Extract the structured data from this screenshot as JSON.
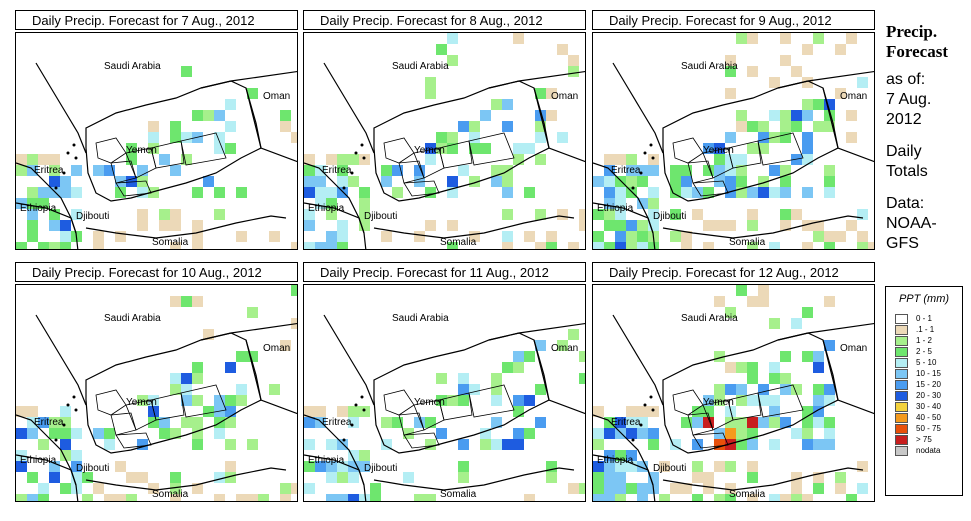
{
  "panels": [
    {
      "title": "Daily Precip. Forecast for  7 Aug., 2012",
      "seed": 7,
      "density": 0.55,
      "intense": 0.0
    },
    {
      "title": "Daily Precip. Forecast for  8 Aug., 2012",
      "seed": 8,
      "density": 0.75,
      "intense": 0.02
    },
    {
      "title": "Daily Precip. Forecast for  9 Aug., 2012",
      "seed": 9,
      "density": 0.95,
      "intense": 0.0
    },
    {
      "title": "Daily Precip. Forecast for  10 Aug., 2012",
      "seed": 10,
      "density": 0.85,
      "intense": 0.0
    },
    {
      "title": "Daily Precip. Forecast for  11 Aug., 2012",
      "seed": 11,
      "density": 0.6,
      "intense": 0.0
    },
    {
      "title": "Daily Precip. Forecast for  12 Aug., 2012",
      "seed": 12,
      "density": 1.0,
      "intense": 0.05
    }
  ],
  "map_labels": {
    "saudi": "Saudi Arabia",
    "oman": "Oman",
    "yemen": "Yemen",
    "eritrea": "Eritrea",
    "ethiopia": "Ethiopia",
    "djibouti": "Djibouti",
    "somalia": "Somalia"
  },
  "side": {
    "title_line1": "Precip.",
    "title_line2": "Forecast",
    "asof_line1": "as of:",
    "asof_line2": "7 Aug.",
    "asof_line3": "2012",
    "totals_line1": "Daily",
    "totals_line2": "Totals",
    "data_line1": "Data:",
    "data_line2": "NOAA-",
    "data_line3": "GFS"
  },
  "legend": {
    "title": "PPT (mm)",
    "items": [
      {
        "label": "0 - 1",
        "color": "#ffffff"
      },
      {
        "label": ".1 - 1",
        "color": "#ecd9b8"
      },
      {
        "label": "1 - 2",
        "color": "#a6f08c"
      },
      {
        "label": "2 - 5",
        "color": "#6ee66e"
      },
      {
        "label": "5 - 10",
        "color": "#b4eef4"
      },
      {
        "label": "10 - 15",
        "color": "#7cc6f4"
      },
      {
        "label": "15 - 20",
        "color": "#4a9cf0"
      },
      {
        "label": "20 - 30",
        "color": "#1e5ce0"
      },
      {
        "label": "30 - 40",
        "color": "#f4d23c"
      },
      {
        "label": "40 - 50",
        "color": "#f49a1e"
      },
      {
        "label": "50 - 75",
        "color": "#e8500a"
      },
      {
        "label": "> 75",
        "color": "#c81e1e"
      },
      {
        "label": "nodata",
        "color": "#c8c8c8"
      }
    ]
  }
}
